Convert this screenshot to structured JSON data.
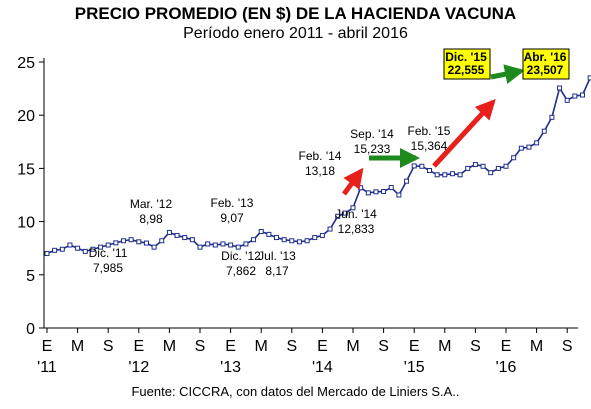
{
  "title": "PRECIO PROMEDIO (EN $) DE LA HACIENDA VACUNA",
  "subtitle": "Período enero 2011 - abril 2016",
  "source": "Fuente: CICCRA, con datos del Mercado de Liniers S.A..",
  "colors": {
    "line": "#1f2e8c",
    "marker_fill": "#ffffff",
    "red_arrow": "#e8201c",
    "green_arrow": "#1e8a1e",
    "highlight_box": "#ffff00"
  },
  "chart_data": {
    "type": "line",
    "ylim": [
      0,
      25
    ],
    "yticks": [
      0,
      5,
      10,
      15,
      20,
      25
    ],
    "grid": false,
    "x_tick_labels": [
      "E",
      "M",
      "S",
      "E",
      "M",
      "S",
      "E",
      "M",
      "S",
      "E",
      "M",
      "S",
      "E",
      "M",
      "S",
      "E",
      "M",
      "S"
    ],
    "year_labels": [
      {
        "label": "'11",
        "tick_index": 0
      },
      {
        "label": "'12",
        "tick_index": 3
      },
      {
        "label": "'13",
        "tick_index": 6
      },
      {
        "label": "'14",
        "tick_index": 9
      },
      {
        "label": "'15",
        "tick_index": 12
      },
      {
        "label": "'16",
        "tick_index": 15
      }
    ],
    "series": [
      {
        "values": [
          7.0,
          7.3,
          7.4,
          7.8,
          7.5,
          7.2,
          7.4,
          7.6,
          7.8,
          8.0,
          8.2,
          8.3,
          8.1,
          7.985,
          7.6,
          8.2,
          8.98,
          8.7,
          8.5,
          8.3,
          7.6,
          7.9,
          7.8,
          7.9,
          7.8,
          7.6,
          7.9,
          8.3,
          9.07,
          8.8,
          8.5,
          8.3,
          8.2,
          8.1,
          8.2,
          8.5,
          8.7,
          9.3,
          10.5,
          10.8,
          11.3,
          13.18,
          12.7,
          12.8,
          12.833,
          13.2,
          12.5,
          13.8,
          15.233,
          15.2,
          14.8,
          14.4,
          14.4,
          14.5,
          14.4,
          15.0,
          15.364,
          15.2,
          14.6,
          15.0,
          15.2,
          16.0,
          16.9,
          17.0,
          17.4,
          18.5,
          19.8,
          22.555,
          21.4,
          21.8,
          21.9,
          23.507
        ]
      }
    ],
    "annotations": [
      {
        "text_lines": [
          "Dic. '11",
          "7,985"
        ]
      },
      {
        "text_lines": [
          "Mar. '12",
          "8,98"
        ]
      },
      {
        "text_lines": [
          "Feb. '13",
          "9,07"
        ]
      },
      {
        "text_lines": [
          "Dic. '12",
          "7,862"
        ]
      },
      {
        "text_lines": [
          "Jul. '13",
          "8,17"
        ]
      },
      {
        "text_lines": [
          "Feb. '14",
          "13,18"
        ]
      },
      {
        "text_lines": [
          "Jun. '14",
          "12,833"
        ]
      },
      {
        "text_lines": [
          "Sep. '14",
          "15,233"
        ]
      },
      {
        "text_lines": [
          "Feb. '15",
          "15,364"
        ]
      },
      {
        "text_lines": [
          "Dic. '15",
          "22,555"
        ],
        "highlight": true
      },
      {
        "text_lines": [
          "Abr. '16",
          "23,507"
        ],
        "highlight": true
      }
    ]
  }
}
